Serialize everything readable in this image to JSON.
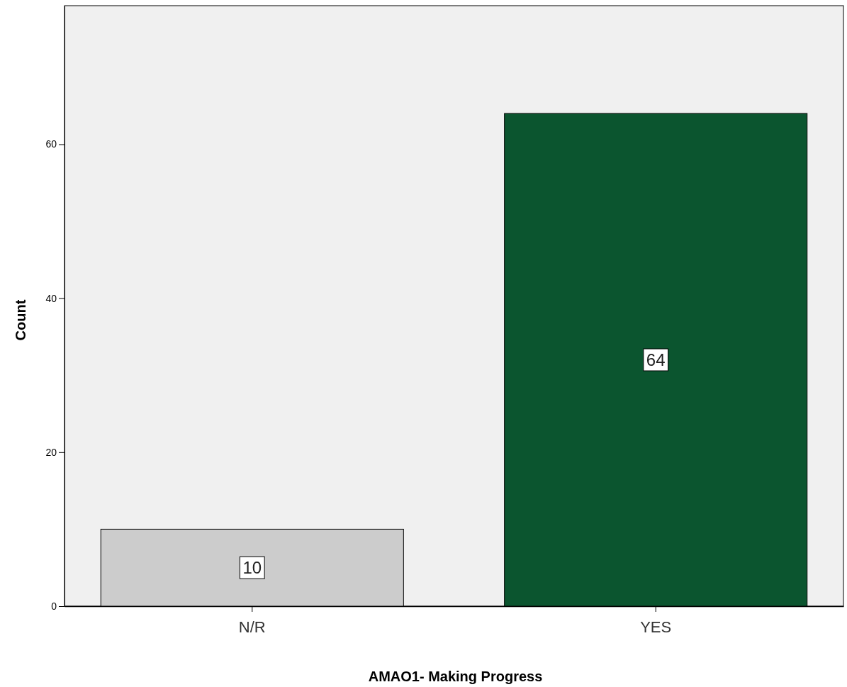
{
  "chart_data": {
    "type": "bar",
    "xlabel": "AMAO1- Making Progress",
    "ylabel": "Count",
    "categories": [
      "N/R",
      "YES"
    ],
    "values": [
      10,
      64
    ],
    "colors": [
      "#cccccc",
      "#0b552f"
    ],
    "ylim": [
      0,
      78
    ],
    "yticks": [
      0,
      20,
      40,
      60
    ],
    "data_labels": true,
    "grid": false
  }
}
